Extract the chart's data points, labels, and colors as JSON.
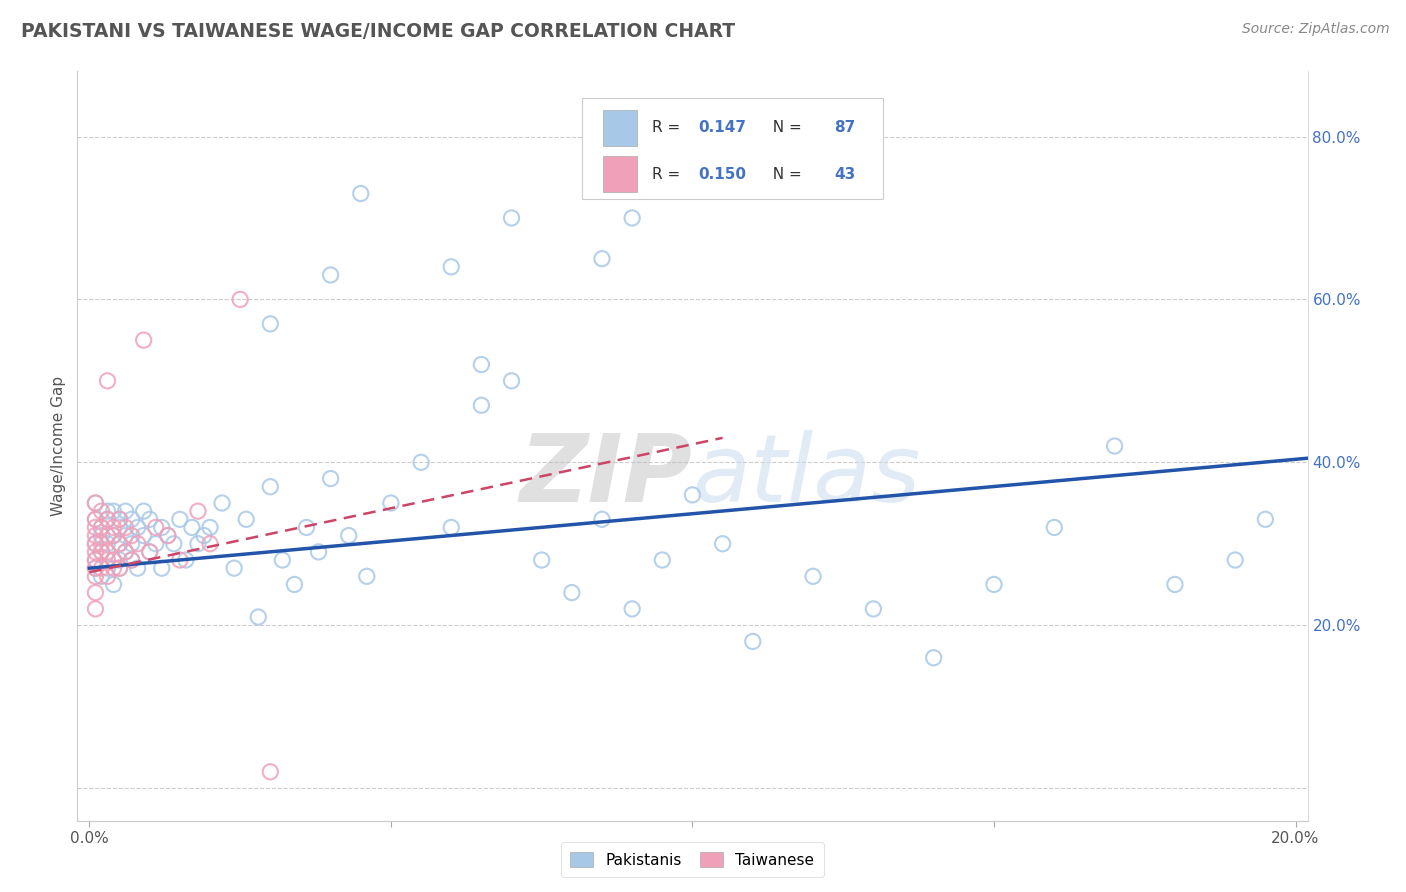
{
  "title": "PAKISTANI VS TAIWANESE WAGE/INCOME GAP CORRELATION CHART",
  "source": "Source: ZipAtlas.com",
  "ylabel": "Wage/Income Gap",
  "xlim": [
    -0.002,
    0.202
  ],
  "ylim": [
    -0.04,
    0.88
  ],
  "xtick_vals": [
    0.0,
    0.05,
    0.1,
    0.15,
    0.2
  ],
  "xticklabels": [
    "0.0%",
    "",
    "",
    "",
    "20.0%"
  ],
  "ytick_vals": [
    0.0,
    0.2,
    0.4,
    0.6,
    0.8
  ],
  "yticklabels": [
    "",
    "20.0%",
    "40.0%",
    "60.0%",
    "80.0%"
  ],
  "R_blue": 0.147,
  "N_blue": 87,
  "R_pink": 0.15,
  "N_pink": 43,
  "blue_dot_color": "#A8C8E8",
  "pink_dot_color": "#F0A0B8",
  "blue_line_color": "#2255AA",
  "pink_line_color": "#CC4466",
  "watermark_color": "#C8DCF0",
  "watermark_text": "ZIPatlas",
  "pakistanis_label": "Pakistanis",
  "taiwanese_label": "Taiwanese",
  "legend_blue_color": "#A8C8E8",
  "legend_pink_color": "#F0A0B8",
  "blue_x": [
    0.001,
    0.001,
    0.001,
    0.001,
    0.001,
    0.002,
    0.002,
    0.002,
    0.002,
    0.003,
    0.003,
    0.003,
    0.003,
    0.004,
    0.004,
    0.004,
    0.004,
    0.005,
    0.005,
    0.005,
    0.005,
    0.005,
    0.006,
    0.006,
    0.006,
    0.007,
    0.007,
    0.007,
    0.008,
    0.008,
    0.009,
    0.009,
    0.01,
    0.01,
    0.011,
    0.012,
    0.012,
    0.013,
    0.014,
    0.015,
    0.016,
    0.017,
    0.018,
    0.019,
    0.02,
    0.022,
    0.024,
    0.026,
    0.028,
    0.03,
    0.032,
    0.034,
    0.036,
    0.038,
    0.04,
    0.043,
    0.046,
    0.05,
    0.055,
    0.06,
    0.065,
    0.07,
    0.075,
    0.08,
    0.085,
    0.09,
    0.095,
    0.1,
    0.105,
    0.11,
    0.12,
    0.13,
    0.14,
    0.15,
    0.16,
    0.17,
    0.18,
    0.19,
    0.195,
    0.085,
    0.09,
    0.03,
    0.04,
    0.045,
    0.06,
    0.065,
    0.07
  ],
  "blue_y": [
    0.3,
    0.33,
    0.27,
    0.35,
    0.28,
    0.31,
    0.32,
    0.29,
    0.26,
    0.3,
    0.33,
    0.27,
    0.34,
    0.31,
    0.28,
    0.34,
    0.25,
    0.3,
    0.33,
    0.27,
    0.32,
    0.28,
    0.31,
    0.34,
    0.29,
    0.3,
    0.33,
    0.28,
    0.32,
    0.27,
    0.31,
    0.34,
    0.29,
    0.33,
    0.3,
    0.32,
    0.27,
    0.31,
    0.3,
    0.33,
    0.28,
    0.32,
    0.3,
    0.31,
    0.32,
    0.35,
    0.27,
    0.33,
    0.21,
    0.37,
    0.28,
    0.25,
    0.32,
    0.29,
    0.38,
    0.31,
    0.26,
    0.35,
    0.4,
    0.32,
    0.47,
    0.5,
    0.28,
    0.24,
    0.33,
    0.22,
    0.28,
    0.36,
    0.3,
    0.18,
    0.26,
    0.22,
    0.16,
    0.25,
    0.32,
    0.42,
    0.25,
    0.28,
    0.33,
    0.65,
    0.7,
    0.57,
    0.63,
    0.73,
    0.64,
    0.52,
    0.7
  ],
  "pink_x": [
    0.001,
    0.001,
    0.001,
    0.001,
    0.001,
    0.001,
    0.001,
    0.001,
    0.001,
    0.001,
    0.001,
    0.002,
    0.002,
    0.002,
    0.002,
    0.002,
    0.003,
    0.003,
    0.003,
    0.003,
    0.003,
    0.003,
    0.004,
    0.004,
    0.004,
    0.004,
    0.005,
    0.005,
    0.005,
    0.006,
    0.006,
    0.007,
    0.007,
    0.008,
    0.009,
    0.01,
    0.011,
    0.013,
    0.015,
    0.018,
    0.02,
    0.025,
    0.03
  ],
  "pink_y": [
    0.28,
    0.32,
    0.3,
    0.26,
    0.33,
    0.29,
    0.35,
    0.27,
    0.24,
    0.31,
    0.22,
    0.29,
    0.32,
    0.27,
    0.34,
    0.3,
    0.28,
    0.31,
    0.33,
    0.26,
    0.29,
    0.5,
    0.28,
    0.31,
    0.27,
    0.32,
    0.3,
    0.27,
    0.33,
    0.29,
    0.32,
    0.28,
    0.31,
    0.3,
    0.55,
    0.29,
    0.32,
    0.31,
    0.28,
    0.34,
    0.3,
    0.6,
    0.02
  ],
  "blue_line_x0": 0.0,
  "blue_line_x1": 0.202,
  "blue_line_y0": 0.27,
  "blue_line_y1": 0.405,
  "pink_line_x0": 0.0,
  "pink_line_x1": 0.105,
  "pink_line_y0": 0.265,
  "pink_line_y1": 0.43
}
